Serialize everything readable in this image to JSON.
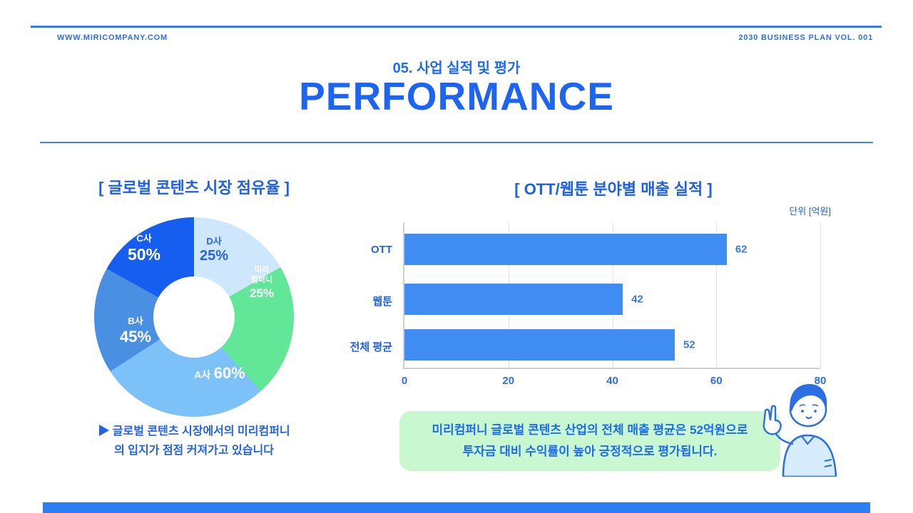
{
  "header": {
    "website": "WWW.MIRICOMPANY.COM",
    "doc_ref": "2030 BUSINESS PLAN VOL. 001"
  },
  "title_block": {
    "section": "05. 사업 실적 및 평가",
    "title": "PERFORMANCE"
  },
  "colors": {
    "primary_blue": "#1d64f2",
    "rule_blue": "#2f7df6",
    "bar_blue": "#3f8df3",
    "callout_green": "#c9f8d0"
  },
  "chart_data": [
    {
      "type": "pie",
      "title": "[ 글로벌 콘텐츠 시장 점유율 ]",
      "segments": [
        {
          "label": "D사",
          "value_label": "25%",
          "sweep_deg": 60,
          "color": "#cfe7fd"
        },
        {
          "label": "미리컴퍼니",
          "label_lines": [
            "미리",
            "컴퍼니"
          ],
          "value_label": "25%",
          "sweep_deg": 78,
          "color": "#62e698"
        },
        {
          "label": "A사",
          "value_label": "60%",
          "sweep_deg": 99,
          "color": "#7cc2f8"
        },
        {
          "label": "B사",
          "value_label": "45%",
          "sweep_deg": 62,
          "color": "#4a90e2"
        },
        {
          "label": "C사",
          "value_label": "50%",
          "sweep_deg": 61,
          "color": "#155ef0"
        }
      ],
      "note_bullet": "▶",
      "note_lines": [
        "글로벌 콘텐츠 시장에서의 미리컴퍼니",
        "의 입지가 점점 커져가고 있습니다"
      ]
    },
    {
      "type": "bar",
      "title": "[ OTT/웹툰 분야별 매출 실적 ]",
      "unit_label": "단위 [억원]",
      "categories": [
        "OTT",
        "웹툰",
        "전체 평균"
      ],
      "values": [
        62,
        42,
        52
      ],
      "xlim": [
        0,
        80
      ],
      "xticks": [
        0,
        20,
        40,
        60,
        80
      ],
      "bar_color": "#3f8df3",
      "legend": "none",
      "grid": "vertical"
    }
  ],
  "callout": {
    "lines": [
      "미리컴퍼니 글로벌 콘텐츠 산업의 전체 매출 평균은 52억원으로",
      "투자금 대비 수익률이 높아 긍정적으로 평가됩니다."
    ]
  }
}
